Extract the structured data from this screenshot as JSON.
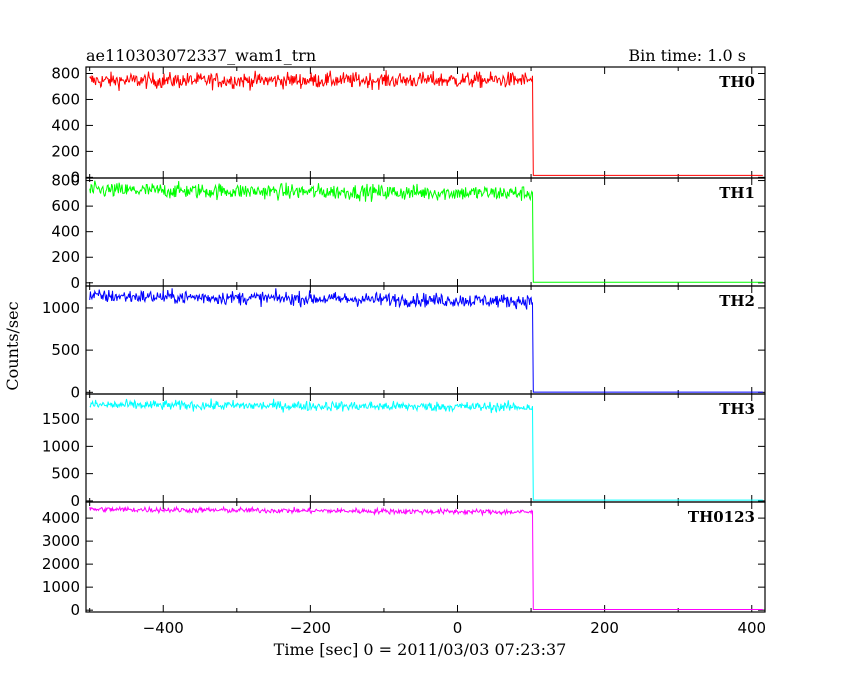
{
  "chart_data": {
    "type": "line",
    "title": "ae110303072337_wam1_trn",
    "subtitle": "Bin time: 1.0 s",
    "xlabel": "Time [sec] 0 = 2011/03/03 07:23:37",
    "ylabel": "Counts/sec",
    "xlim": [
      -505,
      418
    ],
    "x_ticks": [
      -400,
      -200,
      0,
      200,
      400
    ],
    "x_tick_labels": [
      "−400",
      "−200",
      "0",
      "200",
      "400"
    ],
    "drop_time": 103,
    "series": [
      {
        "name": "TH0",
        "color": "#ff0000",
        "ylim": [
          -5,
          850
        ],
        "y_ticks": [
          0,
          200,
          400,
          600,
          800
        ],
        "level_start": 745,
        "level_end": 750,
        "noise": 30,
        "after": 15
      },
      {
        "name": "TH1",
        "color": "#00ff00",
        "ylim": [
          -25,
          820
        ],
        "y_ticks": [
          0,
          200,
          400,
          600,
          800
        ],
        "level_start": 725,
        "level_end": 700,
        "noise": 30,
        "after": 5
      },
      {
        "name": "TH2",
        "color": "#0000ff",
        "ylim": [
          -20,
          1260
        ],
        "y_ticks": [
          0,
          500,
          1000
        ],
        "level_start": 1140,
        "level_end": 1080,
        "noise": 40,
        "after": 2
      },
      {
        "name": "TH3",
        "color": "#00ffff",
        "ylim": [
          -20,
          1960
        ],
        "y_ticks": [
          0,
          500,
          1000,
          1500
        ],
        "level_start": 1760,
        "level_end": 1720,
        "noise": 45,
        "after": 15
      },
      {
        "name": "TH0123",
        "color": "#ff00ff",
        "ylim": [
          -80,
          4700
        ],
        "y_ticks": [
          0,
          1000,
          2000,
          3000,
          4000
        ],
        "level_start": 4380,
        "level_end": 4260,
        "noise": 60,
        "after": 30
      }
    ]
  }
}
